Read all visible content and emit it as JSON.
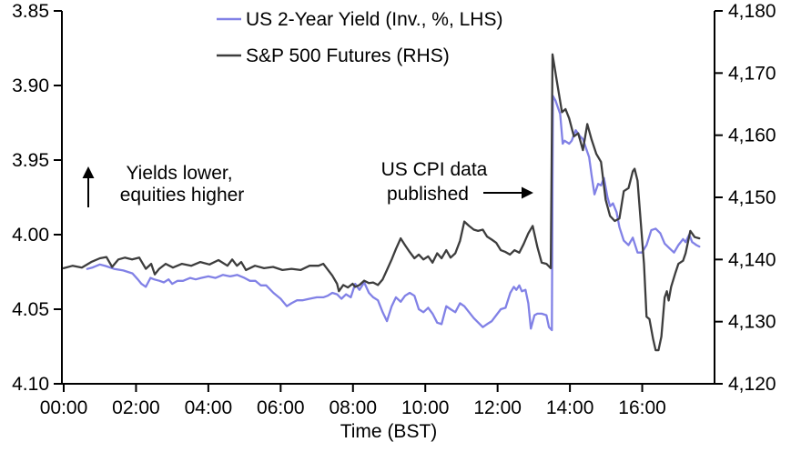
{
  "chart_data": {
    "type": "line",
    "title": "",
    "x_axis": {
      "label": "Time (BST)",
      "domain_hours": [
        0,
        18
      ],
      "tick_hours": [
        0,
        2,
        4,
        6,
        8,
        10,
        12,
        14,
        16
      ],
      "tick_labels": [
        "00:00",
        "02:00",
        "04:00",
        "06:00",
        "08:00",
        "10:00",
        "12:00",
        "14:00",
        "16:00"
      ]
    },
    "left_axis": {
      "description": "US 2-Year Yield, inverted, percent",
      "top_value": 3.85,
      "bottom_value": 4.1,
      "tick_values": [
        3.85,
        3.9,
        3.95,
        4.0,
        4.05,
        4.1
      ],
      "tick_labels": [
        "3.85",
        "3.90",
        "3.95",
        "4.00",
        "4.05",
        "4.10"
      ]
    },
    "right_axis": {
      "description": "S&P 500 Futures index level",
      "top_value": 4180,
      "bottom_value": 4120,
      "tick_values": [
        4180,
        4170,
        4160,
        4150,
        4140,
        4130,
        4120
      ],
      "tick_labels": [
        "4,180",
        "4,170",
        "4,160",
        "4,150",
        "4,140",
        "4,130",
        "4,120"
      ]
    },
    "legend": [
      {
        "label": "US 2-Year Yield (Inv., %, LHS)",
        "color": "#8181e6"
      },
      {
        "label": "S&P 500 Futures (RHS)",
        "color": "#3d3d3d"
      }
    ],
    "annotations": [
      {
        "id": "yields-lower",
        "text_lines": [
          "Yields lower,",
          "equities higher"
        ],
        "arrow": "up"
      },
      {
        "id": "cpi-published",
        "text_lines": [
          "US CPI data",
          "published"
        ],
        "arrow": "right"
      }
    ],
    "series": [
      {
        "name": "US 2-Year Yield (Inv., %, LHS)",
        "axis": "left",
        "color": "#8181e6",
        "points": [
          [
            0.65,
            4.023
          ],
          [
            0.8,
            4.022
          ],
          [
            1.0,
            4.02
          ],
          [
            1.15,
            4.021
          ],
          [
            1.4,
            4.023
          ],
          [
            1.65,
            4.024
          ],
          [
            1.9,
            4.026
          ],
          [
            2.05,
            4.03
          ],
          [
            2.15,
            4.033
          ],
          [
            2.27,
            4.035
          ],
          [
            2.4,
            4.029
          ],
          [
            2.5,
            4.03
          ],
          [
            2.65,
            4.031
          ],
          [
            2.77,
            4.032
          ],
          [
            2.9,
            4.03
          ],
          [
            3.0,
            4.033
          ],
          [
            3.15,
            4.031
          ],
          [
            3.3,
            4.031
          ],
          [
            3.5,
            4.029
          ],
          [
            3.65,
            4.03
          ],
          [
            3.8,
            4.029
          ],
          [
            4.0,
            4.028
          ],
          [
            4.2,
            4.029
          ],
          [
            4.4,
            4.027
          ],
          [
            4.6,
            4.028
          ],
          [
            4.8,
            4.027
          ],
          [
            5.0,
            4.029
          ],
          [
            5.15,
            4.031
          ],
          [
            5.3,
            4.031
          ],
          [
            5.45,
            4.034
          ],
          [
            5.6,
            4.034
          ],
          [
            5.8,
            4.039
          ],
          [
            6.0,
            4.043
          ],
          [
            6.17,
            4.048
          ],
          [
            6.3,
            4.046
          ],
          [
            6.45,
            4.044
          ],
          [
            6.6,
            4.044
          ],
          [
            6.8,
            4.043
          ],
          [
            7.0,
            4.042
          ],
          [
            7.18,
            4.042
          ],
          [
            7.3,
            4.041
          ],
          [
            7.43,
            4.039
          ],
          [
            7.56,
            4.04
          ],
          [
            7.68,
            4.043
          ],
          [
            7.81,
            4.04
          ],
          [
            7.94,
            4.042
          ],
          [
            8.06,
            4.033
          ],
          [
            8.18,
            4.037
          ],
          [
            8.31,
            4.032
          ],
          [
            8.44,
            4.039
          ],
          [
            8.56,
            4.042
          ],
          [
            8.69,
            4.044
          ],
          [
            8.82,
            4.052
          ],
          [
            8.94,
            4.058
          ],
          [
            9.07,
            4.048
          ],
          [
            9.19,
            4.042
          ],
          [
            9.32,
            4.045
          ],
          [
            9.44,
            4.041
          ],
          [
            9.57,
            4.039
          ],
          [
            9.7,
            4.041
          ],
          [
            9.82,
            4.05
          ],
          [
            9.95,
            4.052
          ],
          [
            10.08,
            4.049
          ],
          [
            10.2,
            4.053
          ],
          [
            10.33,
            4.059
          ],
          [
            10.45,
            4.06
          ],
          [
            10.58,
            4.048
          ],
          [
            10.7,
            4.05
          ],
          [
            10.83,
            4.052
          ],
          [
            10.96,
            4.046
          ],
          [
            11.08,
            4.048
          ],
          [
            11.34,
            4.056
          ],
          [
            11.59,
            4.062
          ],
          [
            11.71,
            4.06
          ],
          [
            11.84,
            4.058
          ],
          [
            12.09,
            4.05
          ],
          [
            12.22,
            4.049
          ],
          [
            12.35,
            4.039
          ],
          [
            12.45,
            4.035
          ],
          [
            12.52,
            4.037
          ],
          [
            12.6,
            4.034
          ],
          [
            12.67,
            4.038
          ],
          [
            12.77,
            4.037
          ],
          [
            12.85,
            4.046
          ],
          [
            12.92,
            4.063
          ],
          [
            13.02,
            4.054
          ],
          [
            13.1,
            4.053
          ],
          [
            13.22,
            4.053
          ],
          [
            13.35,
            4.054
          ],
          [
            13.42,
            4.062
          ],
          [
            13.5,
            4.064
          ],
          [
            13.53,
            3.907
          ],
          [
            13.6,
            3.91
          ],
          [
            13.73,
            3.919
          ],
          [
            13.8,
            3.939
          ],
          [
            13.85,
            3.937
          ],
          [
            13.98,
            3.939
          ],
          [
            14.05,
            3.937
          ],
          [
            14.16,
            3.93
          ],
          [
            14.28,
            3.934
          ],
          [
            14.36,
            3.936
          ],
          [
            14.43,
            3.941
          ],
          [
            14.53,
            3.948
          ],
          [
            14.6,
            3.96
          ],
          [
            14.68,
            3.973
          ],
          [
            14.78,
            3.966
          ],
          [
            14.86,
            3.967
          ],
          [
            14.94,
            3.962
          ],
          [
            15.04,
            3.975
          ],
          [
            15.11,
            3.981
          ],
          [
            15.19,
            3.979
          ],
          [
            15.29,
            3.985
          ],
          [
            15.37,
            3.995
          ],
          [
            15.49,
            4.004
          ],
          [
            15.62,
            4.007
          ],
          [
            15.74,
            4.002
          ],
          [
            15.87,
            4.012
          ],
          [
            15.99,
            4.012
          ],
          [
            16.12,
            4.007
          ],
          [
            16.25,
            3.997
          ],
          [
            16.37,
            3.996
          ],
          [
            16.5,
            3.999
          ],
          [
            16.62,
            4.006
          ],
          [
            16.75,
            4.009
          ],
          [
            16.88,
            4.012
          ],
          [
            17.0,
            4.007
          ],
          [
            17.13,
            4.003
          ],
          [
            17.2,
            4.005
          ],
          [
            17.3,
            4.0
          ],
          [
            17.38,
            4.005
          ],
          [
            17.5,
            4.007
          ],
          [
            17.58,
            4.008
          ]
        ]
      },
      {
        "name": "S&P 500 Futures (RHS)",
        "axis": "right",
        "color": "#3d3d3d",
        "points": [
          [
            0.0,
            4138.6
          ],
          [
            0.25,
            4139.0
          ],
          [
            0.5,
            4138.7
          ],
          [
            0.76,
            4139.6
          ],
          [
            1.0,
            4140.2
          ],
          [
            1.18,
            4140.4
          ],
          [
            1.34,
            4138.8
          ],
          [
            1.51,
            4140.0
          ],
          [
            1.69,
            4140.3
          ],
          [
            1.89,
            4140.0
          ],
          [
            2.09,
            4140.3
          ],
          [
            2.27,
            4138.5
          ],
          [
            2.42,
            4139.3
          ],
          [
            2.52,
            4137.6
          ],
          [
            2.64,
            4138.5
          ],
          [
            2.82,
            4139.3
          ],
          [
            3.02,
            4138.7
          ],
          [
            3.27,
            4139.3
          ],
          [
            3.53,
            4139.0
          ],
          [
            3.78,
            4139.6
          ],
          [
            4.03,
            4139.2
          ],
          [
            4.28,
            4139.9
          ],
          [
            4.53,
            4139.0
          ],
          [
            4.66,
            4140.0
          ],
          [
            4.79,
            4139.0
          ],
          [
            4.91,
            4139.6
          ],
          [
            5.04,
            4138.3
          ],
          [
            5.29,
            4139.0
          ],
          [
            5.54,
            4138.6
          ],
          [
            5.79,
            4138.8
          ],
          [
            6.05,
            4138.3
          ],
          [
            6.3,
            4138.5
          ],
          [
            6.55,
            4138.3
          ],
          [
            6.8,
            4139.0
          ],
          [
            7.05,
            4139.0
          ],
          [
            7.18,
            4139.3
          ],
          [
            7.43,
            4137.4
          ],
          [
            7.56,
            4136.1
          ],
          [
            7.61,
            4134.9
          ],
          [
            7.73,
            4135.9
          ],
          [
            7.86,
            4135.5
          ],
          [
            7.99,
            4136.1
          ],
          [
            8.06,
            4135.6
          ],
          [
            8.18,
            4135.9
          ],
          [
            8.31,
            4136.6
          ],
          [
            8.44,
            4136.2
          ],
          [
            8.56,
            4136.3
          ],
          [
            8.69,
            4135.9
          ],
          [
            8.82,
            4136.8
          ],
          [
            8.94,
            4138.3
          ],
          [
            9.07,
            4140.0
          ],
          [
            9.19,
            4141.7
          ],
          [
            9.32,
            4143.4
          ],
          [
            9.44,
            4142.3
          ],
          [
            9.57,
            4141.2
          ],
          [
            9.7,
            4140.2
          ],
          [
            9.82,
            4140.8
          ],
          [
            9.95,
            4140.0
          ],
          [
            10.08,
            4140.5
          ],
          [
            10.2,
            4139.5
          ],
          [
            10.33,
            4141.0
          ],
          [
            10.45,
            4140.2
          ],
          [
            10.58,
            4141.5
          ],
          [
            10.7,
            4140.3
          ],
          [
            10.83,
            4141.0
          ],
          [
            10.96,
            4143.0
          ],
          [
            11.08,
            4146.1
          ],
          [
            11.21,
            4145.4
          ],
          [
            11.34,
            4144.8
          ],
          [
            11.46,
            4144.6
          ],
          [
            11.59,
            4144.8
          ],
          [
            11.71,
            4143.7
          ],
          [
            11.84,
            4143.2
          ],
          [
            11.96,
            4142.7
          ],
          [
            12.09,
            4141.5
          ],
          [
            12.22,
            4141.2
          ],
          [
            12.34,
            4140.8
          ],
          [
            12.47,
            4141.5
          ],
          [
            12.6,
            4141.1
          ],
          [
            12.72,
            4142.5
          ],
          [
            12.85,
            4144.2
          ],
          [
            12.97,
            4145.4
          ],
          [
            13.1,
            4142.0
          ],
          [
            13.22,
            4139.5
          ],
          [
            13.35,
            4139.3
          ],
          [
            13.47,
            4138.6
          ],
          [
            13.52,
            4173.0
          ],
          [
            13.65,
            4168.3
          ],
          [
            13.78,
            4163.7
          ],
          [
            13.88,
            4164.2
          ],
          [
            13.98,
            4162.7
          ],
          [
            14.11,
            4159.8
          ],
          [
            14.23,
            4160.3
          ],
          [
            14.36,
            4157.6
          ],
          [
            14.48,
            4161.8
          ],
          [
            14.6,
            4159.3
          ],
          [
            14.73,
            4157.0
          ],
          [
            14.86,
            4155.7
          ],
          [
            14.99,
            4149.6
          ],
          [
            15.11,
            4147.0
          ],
          [
            15.24,
            4146.2
          ],
          [
            15.37,
            4146.6
          ],
          [
            15.49,
            4151.0
          ],
          [
            15.62,
            4151.5
          ],
          [
            15.74,
            4154.2
          ],
          [
            15.79,
            4154.6
          ],
          [
            15.87,
            4152.7
          ],
          [
            16.05,
            4139.3
          ],
          [
            16.12,
            4130.8
          ],
          [
            16.2,
            4130.4
          ],
          [
            16.3,
            4127.2
          ],
          [
            16.37,
            4125.4
          ],
          [
            16.45,
            4125.4
          ],
          [
            16.53,
            4127.6
          ],
          [
            16.62,
            4133.9
          ],
          [
            16.68,
            4134.9
          ],
          [
            16.73,
            4133.4
          ],
          [
            16.8,
            4135.6
          ],
          [
            16.92,
            4137.9
          ],
          [
            17.0,
            4139.3
          ],
          [
            17.13,
            4139.8
          ],
          [
            17.2,
            4141.0
          ],
          [
            17.33,
            4144.6
          ],
          [
            17.45,
            4143.6
          ],
          [
            17.58,
            4143.4
          ]
        ]
      }
    ]
  }
}
